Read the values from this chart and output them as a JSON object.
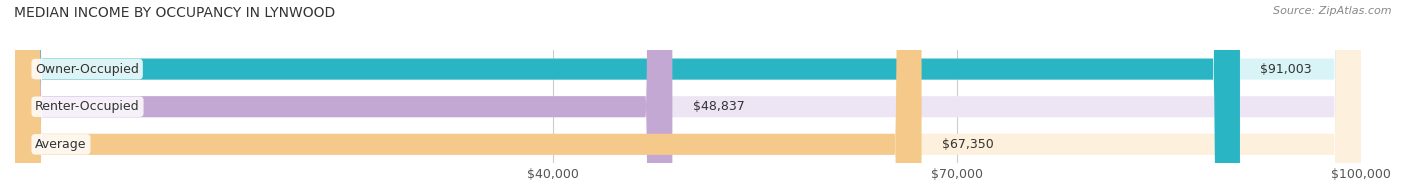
{
  "title": "MEDIAN INCOME BY OCCUPANCY IN LYNWOOD",
  "source": "Source: ZipAtlas.com",
  "categories": [
    "Owner-Occupied",
    "Renter-Occupied",
    "Average"
  ],
  "values": [
    91003,
    48837,
    67350
  ],
  "labels": [
    "$91,003",
    "$48,837",
    "$67,350"
  ],
  "bar_colors": [
    "#29b5c3",
    "#c4a8d4",
    "#f5c98a"
  ],
  "bar_bg_colors": [
    "#d8f4f7",
    "#ede4f4",
    "#fdf0dc"
  ],
  "xlim": [
    0,
    100000
  ],
  "xticks": [
    40000,
    70000,
    100000
  ],
  "xtick_labels": [
    "$40,000",
    "$70,000",
    "$100,000"
  ],
  "bar_height": 0.55,
  "label_fontsize": 9,
  "title_fontsize": 10,
  "source_fontsize": 8,
  "background_color": "#f5f5f5"
}
